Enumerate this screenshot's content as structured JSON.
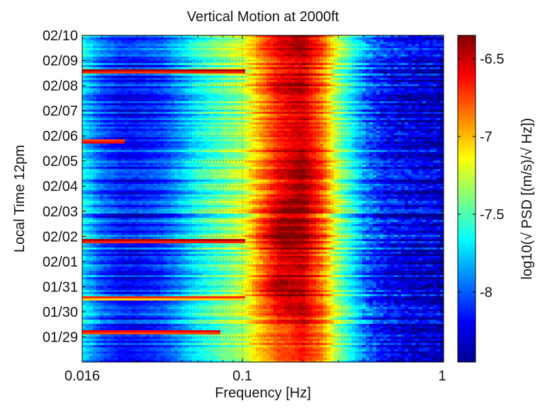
{
  "chart_data": {
    "type": "heatmap",
    "title": "Vertical Motion at 2000ft",
    "xlabel": "Frequency [Hz]",
    "ylabel": "Local Time 12pm",
    "colorbar_label": "log10(√ PSD [(m/s)/√ Hz])",
    "x_scale": "log",
    "xlim": [
      0.016,
      1
    ],
    "x_ticks": [
      0.016,
      0.1,
      1
    ],
    "x_tick_labels": [
      "0.016",
      "0.1",
      "1"
    ],
    "y_ticks": [
      "01/29",
      "01/30",
      "01/31",
      "02/01",
      "02/02",
      "02/03",
      "02/04",
      "02/05",
      "02/06",
      "02/07",
      "02/08",
      "02/09",
      "02/10"
    ],
    "ylim": [
      "01/28 12:00",
      "02/10 12:00"
    ],
    "grid": true,
    "colormap": "jet",
    "clim": [
      -8.45,
      -6.35
    ],
    "colorbar_ticks": [
      -6.5,
      -7,
      -7.5,
      -8
    ],
    "colorbar_tick_labels": [
      "-6.5",
      "-7",
      "-7.5",
      "-8"
    ],
    "profile": {
      "frequency_hz": [
        0.016,
        0.02,
        0.025,
        0.03,
        0.04,
        0.05,
        0.06,
        0.08,
        0.1,
        0.12,
        0.15,
        0.2,
        0.25,
        0.3,
        0.4,
        0.5,
        0.7,
        1
      ],
      "typical_level": [
        -7.7,
        -8.0,
        -8.15,
        -8.15,
        -8.05,
        -7.85,
        -7.65,
        -7.45,
        -7.3,
        -7.0,
        -6.7,
        -6.55,
        -6.85,
        -7.35,
        -7.9,
        -8.15,
        -8.25,
        -8.3
      ]
    },
    "peak_frequency_by_day": {
      "days": [
        "01/29",
        "01/30",
        "01/31",
        "02/01",
        "02/02",
        "02/03",
        "02/04",
        "02/05",
        "02/06",
        "02/07",
        "02/08",
        "02/09",
        "02/10"
      ],
      "peak_hz": [
        0.17,
        0.17,
        0.14,
        0.16,
        0.15,
        0.16,
        0.2,
        0.2,
        0.18,
        0.18,
        0.16,
        0.15,
        0.17
      ],
      "peak_level": [
        -6.75,
        -6.6,
        -6.4,
        -6.55,
        -6.35,
        -6.45,
        -6.4,
        -6.4,
        -6.55,
        -6.55,
        -6.45,
        -6.7,
        -6.45
      ]
    },
    "streaks": [
      {
        "time": "02/09 01:00",
        "x_end_hz": 0.1,
        "level": -6.8
      },
      {
        "time": "02/06 07:00",
        "x_end_hz": 0.025,
        "level": -6.9
      },
      {
        "time": "02/02 07:00",
        "x_end_hz": 0.1,
        "level": -6.8
      },
      {
        "time": "01/31 00:00",
        "x_end_hz": 0.1,
        "level": -7.1
      },
      {
        "time": "01/29 16:00",
        "x_end_hz": 0.075,
        "level": -6.9
      }
    ]
  }
}
